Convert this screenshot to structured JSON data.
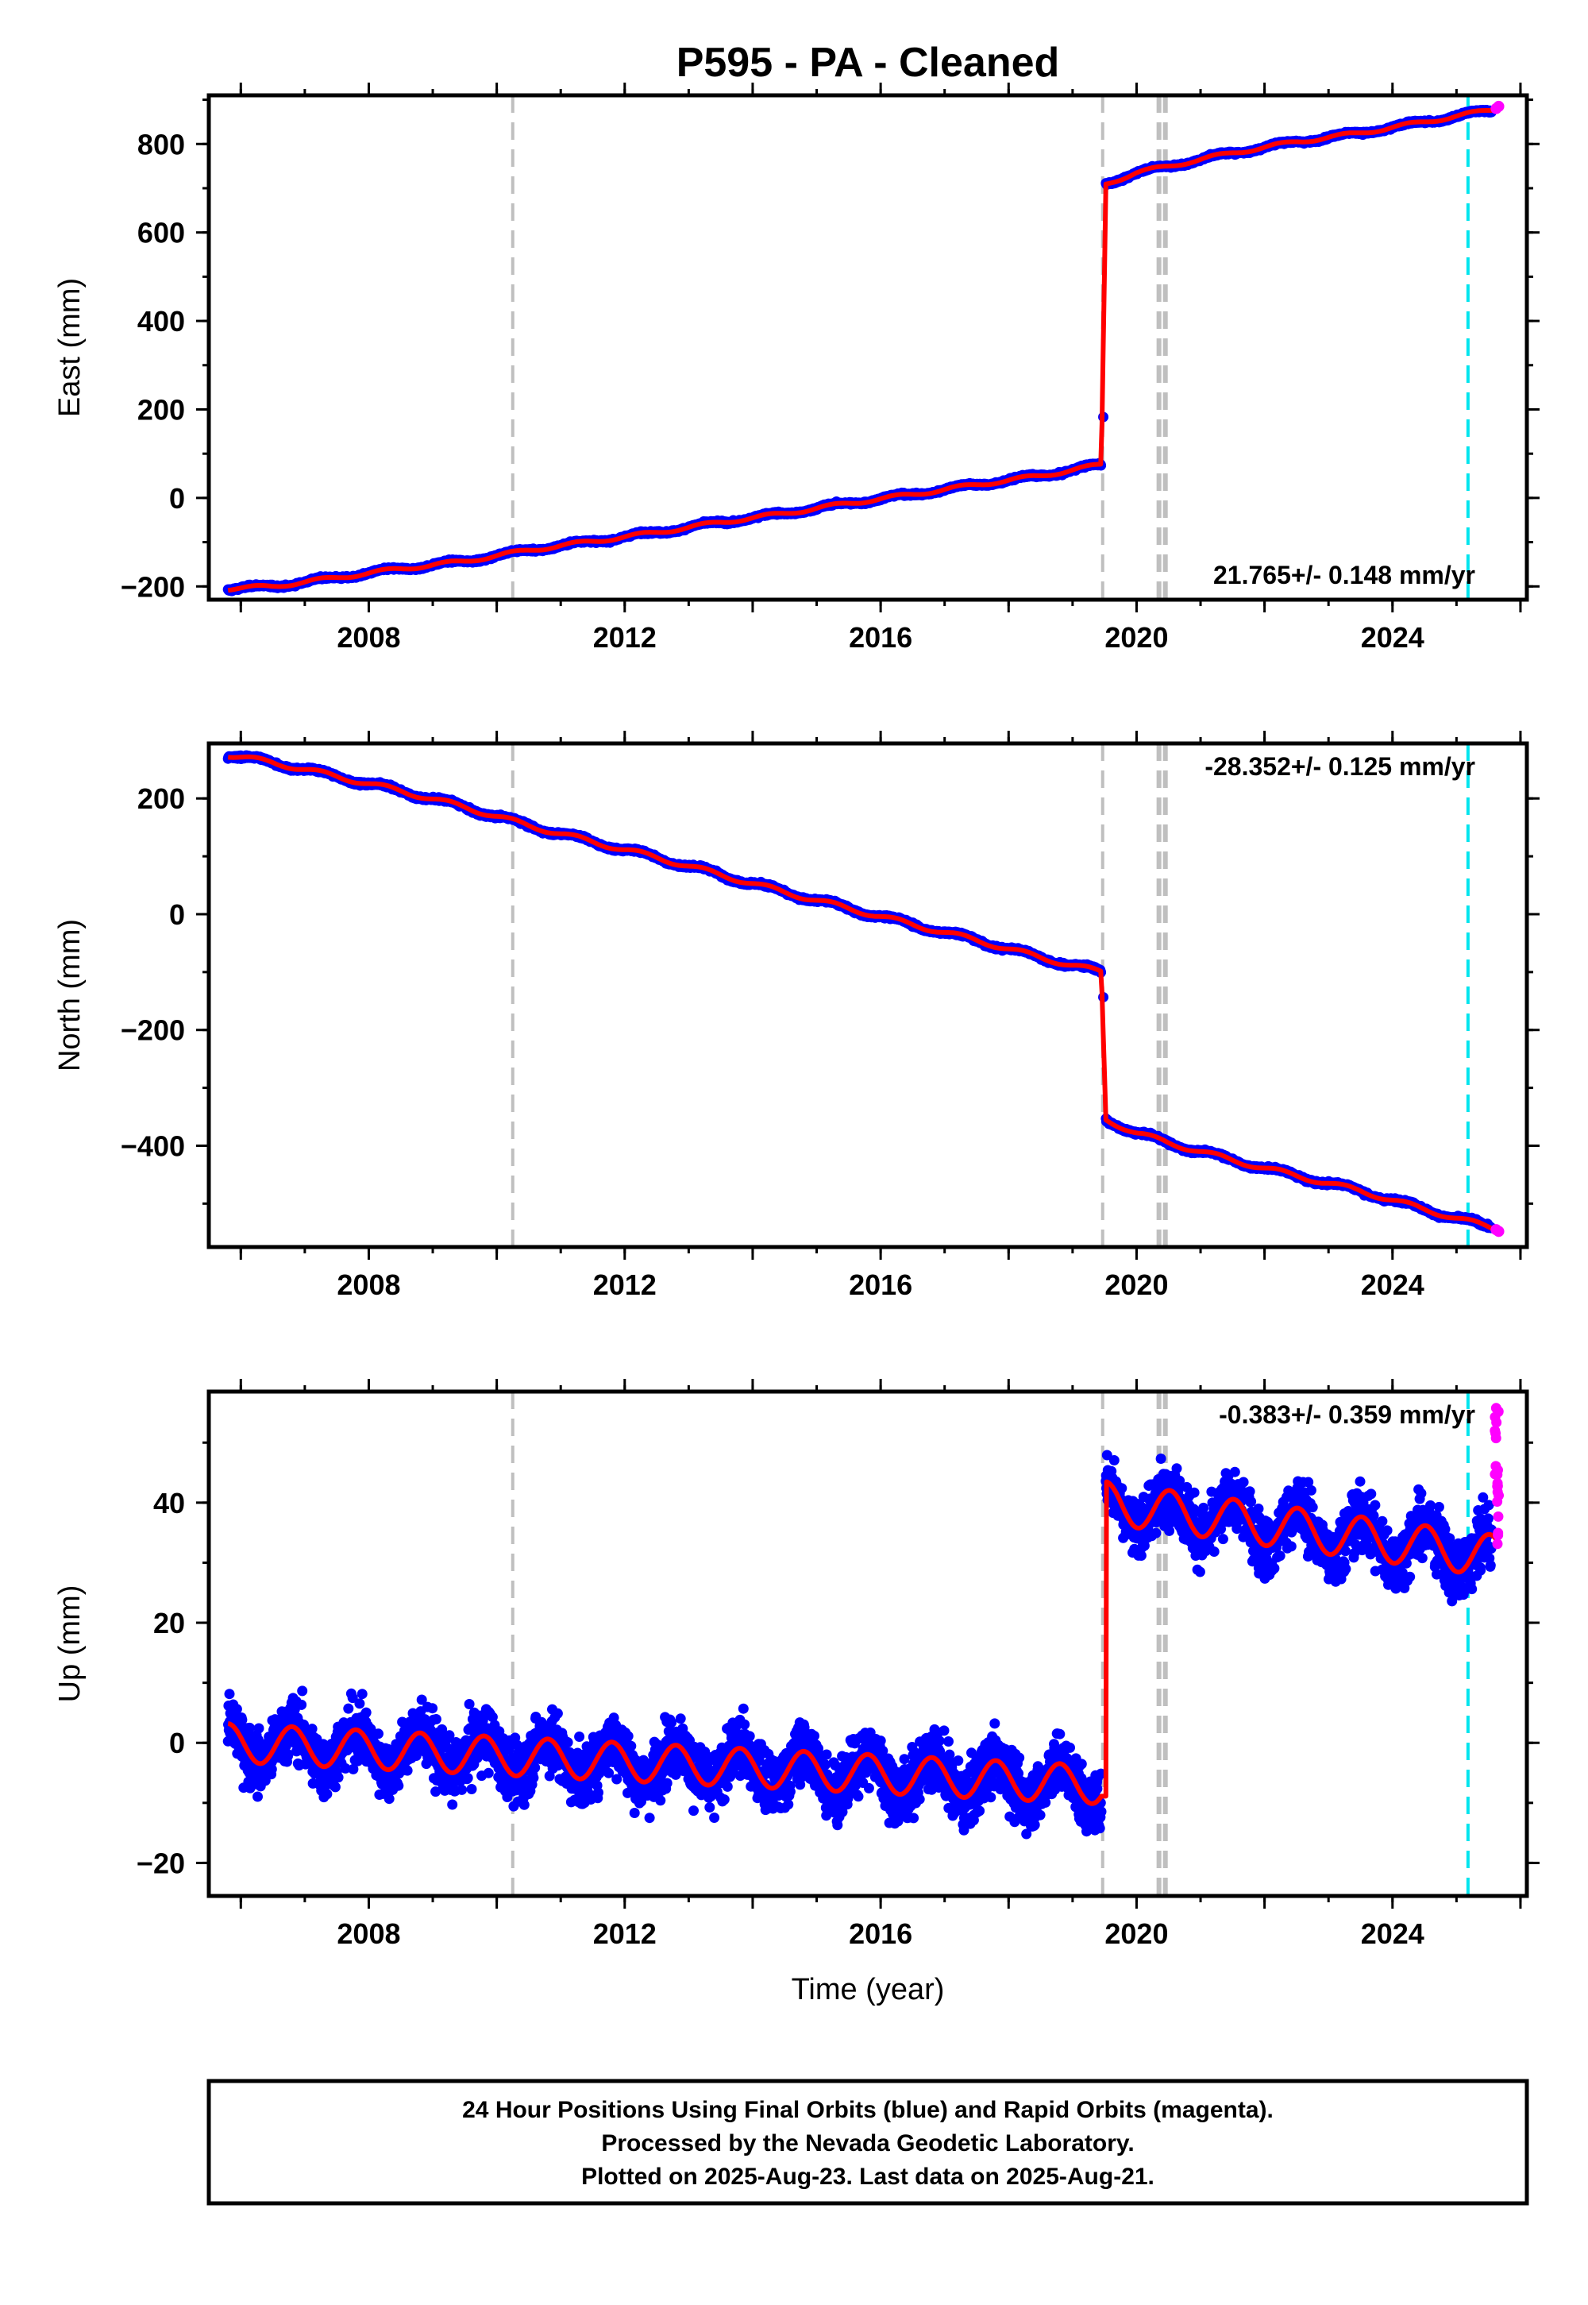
{
  "title": "P595  - PA - Cleaned",
  "colors": {
    "final_orbits": "#0000ff",
    "rapid_orbits": "#ff00ff",
    "model_fit": "#ff0000",
    "event_marker": "#bfbfbf",
    "last_event_marker": "#00e5ee",
    "frame": "#000000"
  },
  "chart_data": [
    {
      "type": "scatter",
      "panel": "east",
      "ylabel": "East (mm)",
      "xlabel": "",
      "xlim": [
        2005.5,
        2026.1
      ],
      "ylim": [
        -230,
        910
      ],
      "xticks": [
        2008,
        2012,
        2016,
        2020,
        2024
      ],
      "yticks": [
        -200,
        0,
        200,
        400,
        600,
        800
      ],
      "x_tick_labels": [
        "2008",
        "2012",
        "2016",
        "2020",
        "2024"
      ],
      "y_tick_labels": [
        "−200",
        "0",
        "200",
        "400",
        "600",
        "800"
      ],
      "rate_label": "21.765+/- 0.148 mm/yr",
      "rate_label_position": "bottom-right",
      "series": [
        {
          "name": "Final Orbits",
          "x": [
            2005.8,
            2006.5,
            2007.5,
            2008.5,
            2009.5,
            2010.5,
            2011.5,
            2012.5,
            2013.5,
            2014.5,
            2015.5,
            2016.5,
            2017.5,
            2018.5,
            2019.45,
            2019.52,
            2020.0,
            2020.5,
            2021.5,
            2022.5,
            2023.5,
            2024.5,
            2025.5
          ],
          "y": [
            -205,
            -200,
            -180,
            -160,
            -143,
            -118,
            -98,
            -78,
            -55,
            -35,
            -12,
            8,
            30,
            50,
            75,
            710,
            735,
            750,
            780,
            805,
            825,
            850,
            875
          ]
        },
        {
          "name": "Rapid Orbits",
          "x": [
            2025.62,
            2025.66
          ],
          "y": [
            880,
            885
          ]
        },
        {
          "name": "Model",
          "x": [
            2005.8,
            2006.5,
            2007.5,
            2008.5,
            2009.5,
            2010.5,
            2011.5,
            2012.5,
            2013.5,
            2014.5,
            2015.5,
            2016.5,
            2017.5,
            2018.5,
            2019.45,
            2019.52,
            2020.0,
            2020.5,
            2021.5,
            2022.5,
            2023.5,
            2024.5,
            2025.66
          ],
          "y": [
            -205,
            -200,
            -180,
            -160,
            -143,
            -118,
            -98,
            -78,
            -55,
            -35,
            -12,
            8,
            30,
            50,
            75,
            710,
            735,
            750,
            780,
            805,
            825,
            850,
            880
          ]
        }
      ],
      "event_markers": [
        2010.25,
        2019.47,
        2020.35,
        2020.45
      ],
      "last_marker": 2025.18
    },
    {
      "type": "scatter",
      "panel": "north",
      "ylabel": "North (mm)",
      "xlabel": "",
      "xlim": [
        2005.5,
        2026.1
      ],
      "ylim": [
        -575,
        295
      ],
      "xticks": [
        2008,
        2012,
        2016,
        2020,
        2024
      ],
      "yticks": [
        -400,
        -200,
        0,
        200
      ],
      "x_tick_labels": [
        "2008",
        "2012",
        "2016",
        "2020",
        "2024"
      ],
      "y_tick_labels": [
        "−400",
        "−200",
        "0",
        "200"
      ],
      "rate_label": "-28.352+/- 0.125 mm/yr",
      "rate_label_position": "top-right",
      "series": [
        {
          "name": "Final Orbits",
          "x": [
            2005.8,
            2006.5,
            2007.5,
            2008.5,
            2009.5,
            2010.5,
            2011.5,
            2012.5,
            2013.5,
            2014.5,
            2015.5,
            2016.5,
            2017.5,
            2018.5,
            2019.45,
            2019.52,
            2020.0,
            2020.5,
            2021.5,
            2022.5,
            2023.5,
            2024.5,
            2025.5
          ],
          "y": [
            275,
            262,
            238,
            213,
            185,
            153,
            125,
            98,
            68,
            38,
            10,
            -18,
            -45,
            -75,
            -100,
            -355,
            -378,
            -395,
            -425,
            -452,
            -478,
            -510,
            -540
          ]
        },
        {
          "name": "Rapid Orbits",
          "x": [
            2025.62,
            2025.66
          ],
          "y": [
            -545,
            -548
          ]
        },
        {
          "name": "Model",
          "x": [
            2005.8,
            2006.5,
            2007.5,
            2008.5,
            2009.5,
            2010.5,
            2011.5,
            2012.5,
            2013.5,
            2014.5,
            2015.5,
            2016.5,
            2017.5,
            2018.5,
            2019.45,
            2019.52,
            2020.0,
            2020.5,
            2021.5,
            2022.5,
            2023.5,
            2024.5,
            2025.66
          ],
          "y": [
            275,
            262,
            238,
            213,
            185,
            153,
            125,
            98,
            68,
            38,
            10,
            -18,
            -45,
            -75,
            -100,
            -355,
            -378,
            -395,
            -425,
            -452,
            -478,
            -510,
            -545
          ]
        }
      ],
      "event_markers": [
        2010.25,
        2019.47,
        2020.35,
        2020.45
      ],
      "last_marker": 2025.18
    },
    {
      "type": "scatter",
      "panel": "up",
      "ylabel": "Up (mm)",
      "xlabel": "Time (year)",
      "xlim": [
        2005.5,
        2026.1
      ],
      "ylim": [
        -25.5,
        58.5
      ],
      "xticks": [
        2008,
        2012,
        2016,
        2020,
        2024
      ],
      "yticks": [
        -20,
        0,
        20,
        40
      ],
      "x_tick_labels": [
        "2008",
        "2012",
        "2016",
        "2020",
        "2024"
      ],
      "y_tick_labels": [
        "−20",
        "0",
        "20",
        "40"
      ],
      "rate_label": "-0.383+/- 0.359 mm/yr",
      "rate_label_position": "top-right",
      "seasonal": {
        "pre_event": {
          "x_start": 2005.8,
          "x_end": 2019.45,
          "offset_start": 0,
          "offset_end": -7,
          "amplitude": 3.2
        },
        "post_event": {
          "x_start": 2019.52,
          "x_end": 2025.66,
          "offset_start": 40,
          "offset_end": 31,
          "amplitude": 3.5
        }
      },
      "scatter_noise_mm": 3.5,
      "series": [
        {
          "name": "Final Orbits",
          "x": [
            2005.8,
            2008,
            2010,
            2012,
            2014,
            2016,
            2018,
            2019.45,
            2019.52,
            2021,
            2023,
            2025.5
          ],
          "y": [
            1,
            -1,
            -2,
            -3,
            -4,
            -4.5,
            -6,
            -7,
            40,
            36,
            34,
            31
          ]
        },
        {
          "name": "Rapid Orbits",
          "x": [
            2025.6,
            2025.62,
            2025.64,
            2025.66
          ],
          "y": [
            32,
            38,
            44,
            56
          ]
        },
        {
          "name": "Model",
          "x": [
            2005.8,
            2019.45,
            2019.52,
            2025.66
          ],
          "y": [
            1,
            -7,
            40,
            31
          ]
        }
      ],
      "event_markers": [
        2010.25,
        2019.47,
        2020.35,
        2020.45
      ],
      "last_marker": 2025.18
    }
  ],
  "footer": {
    "line1": "24 Hour Positions Using Final Orbits (blue) and Rapid Orbits (magenta).",
    "line2": "Processed by the Nevada Geodetic Laboratory.",
    "line3": "Plotted on 2025-Aug-23. Last data on 2025-Aug-21."
  }
}
